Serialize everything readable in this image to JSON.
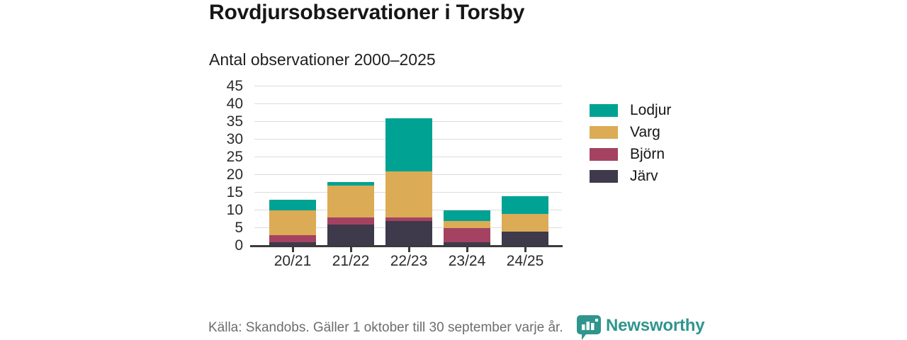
{
  "title": "Rovdjursobservationer i Torsby",
  "subtitle": "Antal observationer 2000–2025",
  "footer": {
    "source": "Källa: Skandobs. Gäller 1 oktober till 30 september varje år.",
    "brand": "Newsworthy"
  },
  "colors": {
    "lodjur": "#00a294",
    "varg": "#dcab55",
    "bjorn": "#a54262",
    "jarv": "#3e3a4b",
    "brand_teal": "#2f958e",
    "grid": "#dcdcdc",
    "axis": "#3b3b3b",
    "muted_text": "#6d6d6d"
  },
  "chart_data": {
    "type": "bar",
    "stacked": true,
    "title": "Rovdjursobservationer i Torsby",
    "subtitle": "Antal observationer 2000–2025",
    "categories": [
      "20/21",
      "21/22",
      "22/23",
      "23/24",
      "24/25"
    ],
    "series": [
      {
        "name": "Lodjur",
        "key": "lodjur",
        "color": "#00a294",
        "values": [
          3,
          1,
          15,
          3,
          5
        ]
      },
      {
        "name": "Varg",
        "key": "varg",
        "color": "#dcab55",
        "values": [
          7,
          9,
          13,
          2,
          5
        ]
      },
      {
        "name": "Björn",
        "key": "bjorn",
        "color": "#a54262",
        "values": [
          2,
          2,
          1,
          4,
          0
        ]
      },
      {
        "name": "Järv",
        "key": "jarv",
        "color": "#3e3a4b",
        "values": [
          1,
          6,
          7,
          1,
          4
        ]
      }
    ],
    "totals": [
      13,
      18,
      36,
      10,
      14
    ],
    "xlabel": "",
    "ylabel": "",
    "ylim": [
      0,
      45
    ],
    "yticks": [
      0,
      5,
      10,
      15,
      20,
      25,
      30,
      35,
      40,
      45
    ],
    "grid": true,
    "legend_position": "right"
  }
}
